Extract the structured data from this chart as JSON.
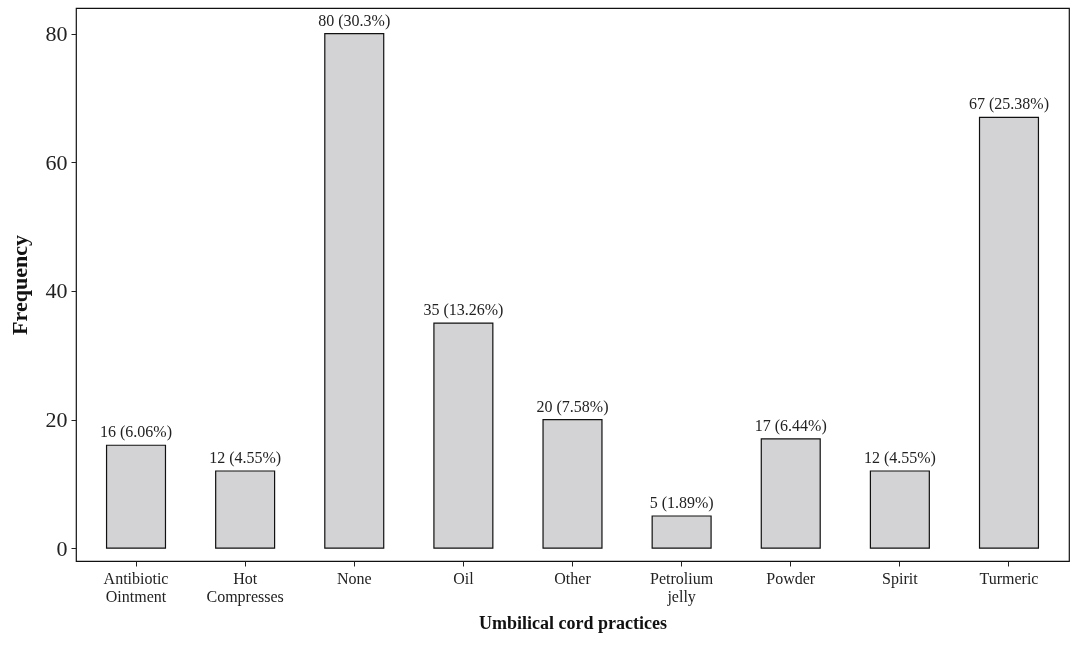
{
  "chart_data": {
    "type": "bar",
    "xlabel": "Umbilical cord practices",
    "ylabel": "Frequency",
    "categories": [
      "Antibiotic Ointment",
      "Hot Compresses",
      "None",
      "Oil",
      "Other",
      "Petrolium jelly",
      "Powder",
      "Spirit",
      "Turmeric"
    ],
    "values": [
      16,
      12,
      80,
      35,
      20,
      5,
      17,
      12,
      67
    ],
    "value_labels": [
      "16 (6.06%)",
      "12 (4.55%)",
      "80 (30.3%)",
      "35 (13.26%)",
      "20 (7.58%)",
      "5 (1.89%)",
      "17 (6.44%)",
      "12 (4.55%)",
      "67 (25.38%)"
    ],
    "color": "#d3d3d5",
    "ylim": [
      -2,
      84
    ],
    "yticks": [
      0,
      20,
      40,
      60,
      80
    ],
    "grid": false
  }
}
